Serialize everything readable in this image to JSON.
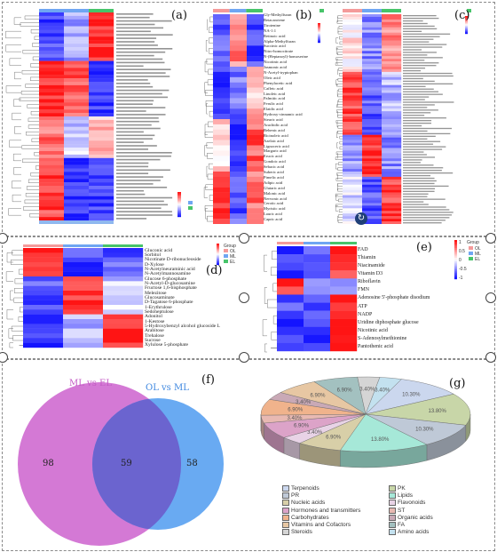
{
  "panels": {
    "a": {
      "label": "(a)"
    },
    "b": {
      "label": "(b)",
      "rows": [
        "Gly-Methylfuran",
        "Betacarotene",
        "Tirotenine",
        "NA-1:1",
        "Retinoic acid",
        "Alpha-Methylfuran",
        "Succinic acid",
        "Nitro-homocitrate",
        "N-(Heptanoyl)-homoserine",
        "Nicotinic acid",
        "Jasmonic acid",
        "N-Acetyl-tryptophan",
        "Oleic acid",
        "Phenylacetic acid",
        "Caffeic acid",
        "Linoleic acid",
        "Palmitic acid",
        "Ferulic acid",
        "Elaidic acid",
        "Hydroxy-cinnamic acid",
        "Stearic acid",
        "Arachidic acid",
        "Behenic acid",
        "Ricinoleic acid",
        "Azelaic acid",
        "Lignoceric acid",
        "Margaric acid",
        "Erucic acid",
        "Gondoic acid",
        "Sebacic acid",
        "Suberic acid",
        "Pimelic acid",
        "Adipic acid",
        "Glutaric acid",
        "Malonic acid",
        "Nervonic acid",
        "Cerotic acid",
        "Myristic acid",
        "Lauric acid",
        "Capric acid"
      ]
    },
    "c": {
      "label": "(c)"
    },
    "d": {
      "label": "(d)",
      "rows": [
        "Gluconic acid",
        "Sorbitol",
        "Nicotinate D-ribonucleoside",
        "D-Xylose",
        "N-Acetylneuraminic acid",
        "N-Acetylmannosamine",
        "Glucose 6-phosphate",
        "N-Acetyl-D-glucosamine",
        "Fructose 1,6-bisphosphate",
        "Melezitose",
        "Glucosaminate",
        "D-Tagatose 6-phosphate",
        "1-Erythrulose",
        "Sedoheptulose",
        "Adonitol",
        "1-Kestose",
        "5-Hydroxybenzyl alcohol glucoside L",
        "Arabitose",
        "Trehalose",
        "Sucrose",
        "Xylulose 5-phosphate"
      ],
      "legend_title": "Group",
      "groups": [
        "OL",
        "ML",
        "EL"
      ]
    },
    "e": {
      "label": "(e)",
      "rows": [
        "FAD",
        "Thiamin",
        "Niacinamide",
        "Vitamin D3",
        "Riboflavin",
        "FMN",
        "Adenosine 5'-phosphate disodium",
        "ATP",
        "NADP",
        "Uridine diphosphate glucose",
        "Nicotinic acid",
        "S-Adenosylmethionine",
        "Pantothenic acid"
      ],
      "legend_title": "Group",
      "groups": [
        "OL",
        "ML",
        "EL"
      ],
      "scale_ticks": [
        "1",
        "0.5",
        "0",
        "-0.5",
        "-1"
      ]
    },
    "f": {
      "label": "(f)",
      "set_left": "ML vs EL",
      "set_right": "OL vs ML",
      "left_only": "98",
      "shared": "59",
      "right_only": "58"
    },
    "g": {
      "label": "(g)"
    }
  },
  "chart_data": [
    {
      "type": "pie",
      "categories": [
        "Terpenoids",
        "PK",
        "PR",
        "Lipids",
        "Nucleic acids",
        "Flavonoids",
        "Hormones and transmitters",
        "ST",
        "Carbohydrates",
        "Organic acids",
        "Vitamins and Cofactors",
        "FA",
        "Steroids",
        "Amino acids"
      ],
      "values": [
        10.3,
        13.8,
        10.3,
        13.8,
        6.9,
        3.4,
        6.9,
        3.4,
        6.9,
        3.4,
        6.9,
        6.9,
        3.4,
        3.4
      ],
      "slice_labels": [
        "10.30%",
        "13.80%",
        "10.30%",
        "13.80%",
        "6.90%",
        "3.40%",
        "6.90%",
        "3.40%",
        "6.90%",
        "3.40%",
        "6.90%",
        "6.90%",
        "3.40%",
        "3.40%"
      ],
      "colors": [
        "#cbd7ee",
        "#c8d6a8",
        "#bfc9d7",
        "#a6e8d8",
        "#d8cfa8",
        "#e8d3e6",
        "#dca3c8",
        "#e8b9b2",
        "#f0b38c",
        "#c9a9b6",
        "#e7c7a3",
        "#a3c1c0",
        "#d5d5d5",
        "#c3e1ef"
      ]
    }
  ]
}
